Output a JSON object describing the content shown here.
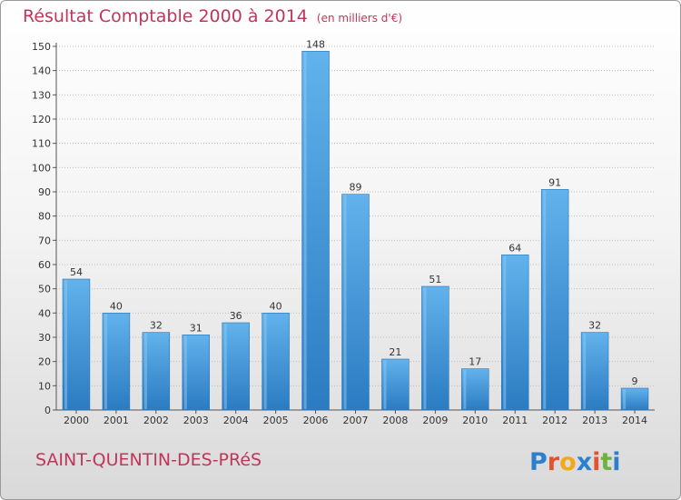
{
  "header": {
    "title": "Résultat Comptable 2000 à 2014",
    "subtitle": "(en milliers d'€)"
  },
  "footer": {
    "town": "SAINT-QUENTIN-DES-PRéS",
    "logo": "Proxiti"
  },
  "colors": {
    "accent": "#c0365a",
    "bar": "#4a9fdf",
    "bar_light": "#6ab8ee",
    "bar_dark": "#2f7fc4",
    "logo_letters": [
      "#2c7fcf",
      "#e5532e",
      "#f2a81d",
      "#2c7fcf",
      "#e5532e",
      "#6db33f",
      "#2c7fcf"
    ]
  },
  "chart_data": {
    "type": "bar",
    "title": "Résultat Comptable 2000 à 2014",
    "subtitle": "(en milliers d'€)",
    "categories": [
      "2000",
      "2001",
      "2002",
      "2003",
      "2004",
      "2005",
      "2006",
      "2007",
      "2008",
      "2009",
      "2010",
      "2011",
      "2012",
      "2013",
      "2014"
    ],
    "values": [
      54,
      40,
      32,
      31,
      36,
      40,
      148,
      89,
      21,
      51,
      17,
      64,
      91,
      32,
      9
    ],
    "xlabel": "",
    "ylabel": "",
    "ylim": [
      0,
      150
    ],
    "yticks": [
      0,
      10,
      20,
      30,
      40,
      50,
      60,
      70,
      80,
      90,
      100,
      110,
      120,
      130,
      140,
      150
    ],
    "grid": true,
    "legend": "none"
  }
}
